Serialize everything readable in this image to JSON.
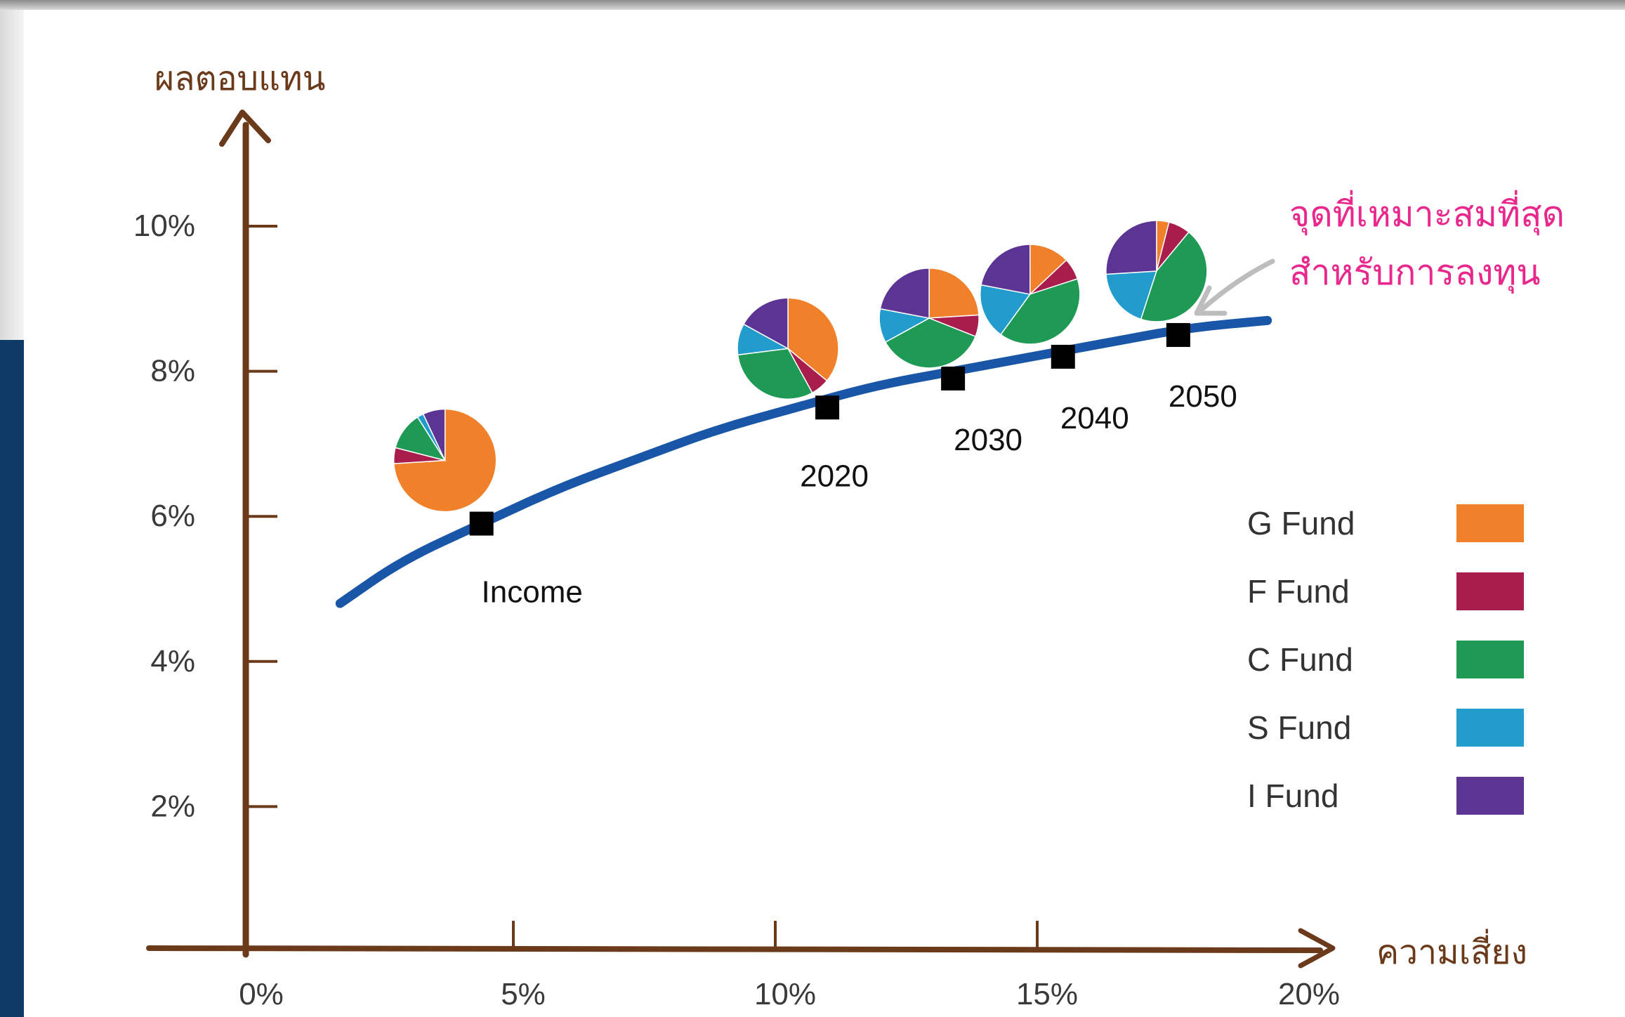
{
  "chart_data": {
    "type": "scatter",
    "ylabel": "ผลตอบแทน",
    "xlabel": "ความเสี่ยง",
    "xlim": [
      0,
      20
    ],
    "ylim": [
      0,
      11
    ],
    "x_ticks": [
      "0%",
      "5%",
      "10%",
      "15%",
      "20%"
    ],
    "y_ticks": [
      "2%",
      "4%",
      "6%",
      "8%",
      "10%"
    ],
    "frontier_curve": {
      "x": [
        1.8,
        3.0,
        4.5,
        6.0,
        7.5,
        9.0,
        10.5,
        12.0,
        13.5,
        15.0,
        16.5,
        18.0,
        19.5
      ],
      "y": [
        4.8,
        5.4,
        5.9,
        6.4,
        6.8,
        7.2,
        7.5,
        7.8,
        8.0,
        8.2,
        8.4,
        8.6,
        8.7
      ]
    },
    "points": [
      {
        "label": "Income",
        "x": 4.5,
        "y": 5.9
      },
      {
        "label": "2020",
        "x": 11.1,
        "y": 7.5
      },
      {
        "label": "2030",
        "x": 13.5,
        "y": 7.9
      },
      {
        "label": "2040",
        "x": 15.6,
        "y": 8.2
      },
      {
        "label": "2050",
        "x": 17.8,
        "y": 8.5
      }
    ],
    "allocations": [
      {
        "point": "Income",
        "G Fund": 74,
        "F Fund": 5,
        "C Fund": 12,
        "S Fund": 2,
        "I Fund": 7
      },
      {
        "point": "2020",
        "G Fund": 36,
        "F Fund": 6,
        "C Fund": 31,
        "S Fund": 10,
        "I Fund": 17
      },
      {
        "point": "2030",
        "G Fund": 24,
        "F Fund": 7,
        "C Fund": 36,
        "S Fund": 11,
        "I Fund": 22
      },
      {
        "point": "2040",
        "G Fund": 13,
        "F Fund": 7,
        "C Fund": 40,
        "S Fund": 18,
        "I Fund": 22
      },
      {
        "point": "2050",
        "G Fund": 4,
        "F Fund": 7,
        "C Fund": 44,
        "S Fund": 19,
        "I Fund": 26
      }
    ],
    "legend": [
      {
        "name": "G Fund",
        "color": "#f0802a"
      },
      {
        "name": "F Fund",
        "color": "#a81d4b"
      },
      {
        "name": "C Fund",
        "color": "#1f9a55"
      },
      {
        "name": "S Fund",
        "color": "#219ccc"
      },
      {
        "name": "I Fund",
        "color": "#5b3494"
      }
    ],
    "legend_position": "right",
    "annotation": {
      "lines": [
        "จุดที่เหมาะสมที่สุด",
        "สำหรับการลงทุน"
      ],
      "color": "#e8288c"
    },
    "axis_color": "#6b3a1a",
    "curve_color": "#1a56a8",
    "grid": false
  }
}
